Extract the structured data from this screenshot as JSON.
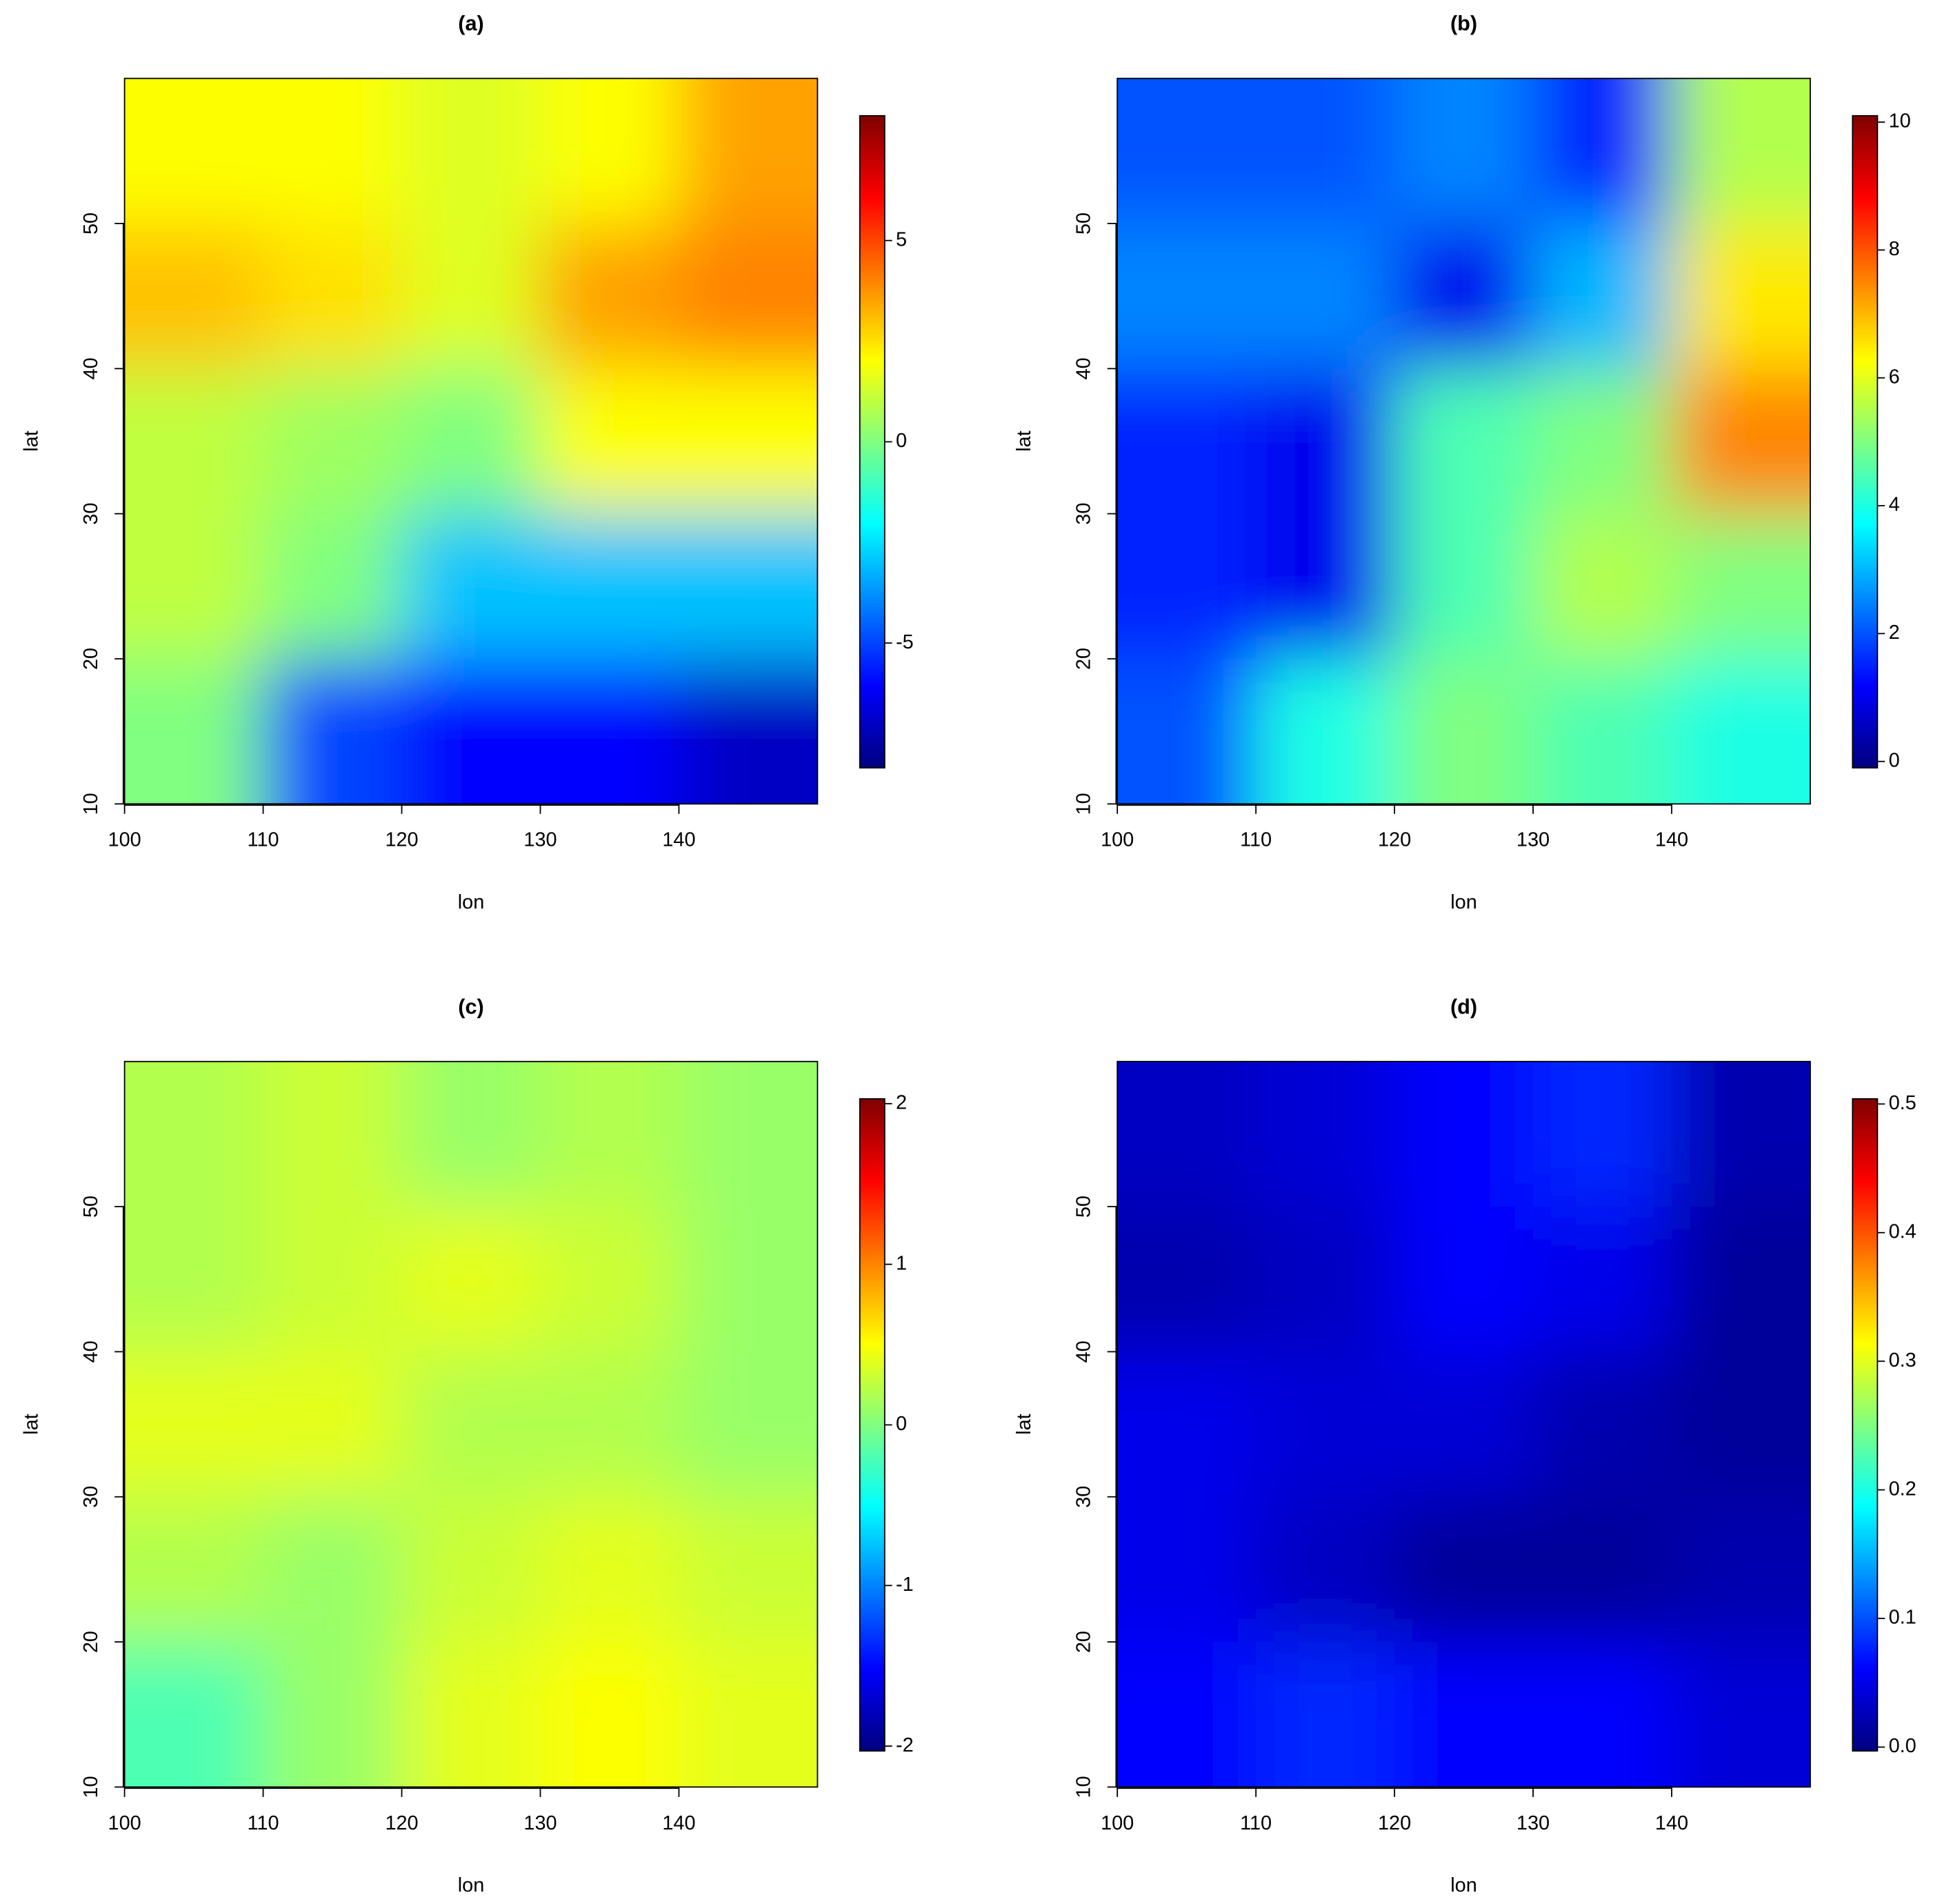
{
  "chart_data": [
    {
      "type": "heatmap",
      "title": "(a)",
      "xlabel": "lon",
      "ylabel": "lat",
      "xlim": [
        100,
        150
      ],
      "ylim": [
        10,
        60
      ],
      "xticks": [
        100,
        110,
        120,
        130,
        140
      ],
      "yticks": [
        10,
        20,
        30,
        40,
        50
      ],
      "zlim": [
        -8.1,
        8.1
      ],
      "zticks": [
        -5,
        0,
        5
      ],
      "colormap": [
        "#000080",
        "#0000ff",
        "#0080ff",
        "#00ffff",
        "#80ff80",
        "#ffff00",
        "#ff8000",
        "#ff0000",
        "#800000"
      ],
      "lon": [
        105,
        115,
        125,
        135,
        145
      ],
      "lat": [
        55,
        45,
        35,
        25,
        15
      ],
      "z": [
        [
          2,
          2,
          1.5,
          2,
          3.5
        ],
        [
          3,
          2.5,
          1.5,
          3.5,
          4
        ],
        [
          1,
          0.5,
          0,
          2,
          2
        ],
        [
          1,
          0,
          -3,
          -3,
          -3
        ],
        [
          0,
          -5,
          -6,
          -6,
          -7
        ]
      ]
    },
    {
      "type": "heatmap",
      "title": "(b)",
      "xlabel": "lon",
      "ylabel": "lat",
      "xlim": [
        100,
        150
      ],
      "ylim": [
        10,
        60
      ],
      "xticks": [
        100,
        110,
        120,
        130,
        140
      ],
      "yticks": [
        10,
        20,
        30,
        40,
        50
      ],
      "zlim": [
        -0.1,
        10.1
      ],
      "zticks": [
        0,
        2,
        4,
        6,
        8,
        10
      ],
      "colormap": [
        "#000080",
        "#0000ff",
        "#0080ff",
        "#00ffff",
        "#80ff80",
        "#ffff00",
        "#ff8000",
        "#ff0000",
        "#800000"
      ],
      "lon": [
        105,
        115,
        125,
        135,
        145
      ],
      "lat": [
        55,
        45,
        35,
        25,
        15
      ],
      "z": [
        [
          2,
          2,
          2.5,
          1.5,
          5.5
        ],
        [
          2.5,
          2.5,
          1,
          3,
          6.5
        ],
        [
          1.5,
          1,
          4.5,
          5,
          7.5
        ],
        [
          1.5,
          1,
          4.5,
          5.5,
          5
        ],
        [
          2,
          4,
          5,
          4.5,
          4
        ]
      ]
    },
    {
      "type": "heatmap",
      "title": "(c)",
      "xlabel": "lon",
      "ylabel": "lat",
      "xlim": [
        100,
        150
      ],
      "ylim": [
        10,
        60
      ],
      "xticks": [
        100,
        110,
        120,
        130,
        140
      ],
      "yticks": [
        10,
        20,
        30,
        40,
        50
      ],
      "zlim": [
        -2.03,
        2.03
      ],
      "zticks": [
        -2,
        -1,
        0,
        1,
        2
      ],
      "colormap": [
        "#000080",
        "#0000ff",
        "#0080ff",
        "#00ffff",
        "#80ff80",
        "#ffff00",
        "#ff8000",
        "#ff0000",
        "#800000"
      ],
      "lon": [
        105,
        115,
        125,
        135,
        145
      ],
      "lat": [
        55,
        45,
        35,
        25,
        15
      ],
      "z": [
        [
          0.2,
          0.3,
          0.1,
          0.2,
          0.1
        ],
        [
          0.2,
          0.3,
          0.4,
          0.3,
          0.1
        ],
        [
          0.4,
          0.4,
          0.2,
          0.2,
          0.1
        ],
        [
          0.2,
          0.1,
          0.3,
          0.4,
          0.3
        ],
        [
          -0.2,
          0.1,
          0.4,
          0.5,
          0.4
        ]
      ]
    },
    {
      "type": "heatmap",
      "title": "(d)",
      "xlabel": "lon",
      "ylabel": "lat",
      "xlim": [
        100,
        150
      ],
      "ylim": [
        10,
        60
      ],
      "xticks": [
        100,
        110,
        120,
        130,
        140
      ],
      "yticks": [
        10,
        20,
        30,
        40,
        50
      ],
      "zlim": [
        -0.003,
        0.504
      ],
      "zticks": [
        {
          "value": 0,
          "label": "0.0"
        },
        0.1,
        0.2,
        0.3,
        0.4,
        0.5
      ],
      "colormap": [
        "#000080",
        "#0000ff",
        "#0080ff",
        "#00ffff",
        "#80ff80",
        "#ffff00",
        "#ff8000",
        "#ff0000",
        "#800000"
      ],
      "lon": [
        105,
        115,
        125,
        135,
        145
      ],
      "lat": [
        55,
        45,
        35,
        25,
        15
      ],
      "z": [
        [
          0.03,
          0.04,
          0.06,
          0.08,
          0.02
        ],
        [
          0.02,
          0.03,
          0.06,
          0.05,
          0.01
        ],
        [
          0.05,
          0.04,
          0.04,
          0.02,
          0.01
        ],
        [
          0.05,
          0.03,
          0.01,
          0.01,
          0.02
        ],
        [
          0.06,
          0.08,
          0.06,
          0.06,
          0.04
        ]
      ]
    }
  ]
}
